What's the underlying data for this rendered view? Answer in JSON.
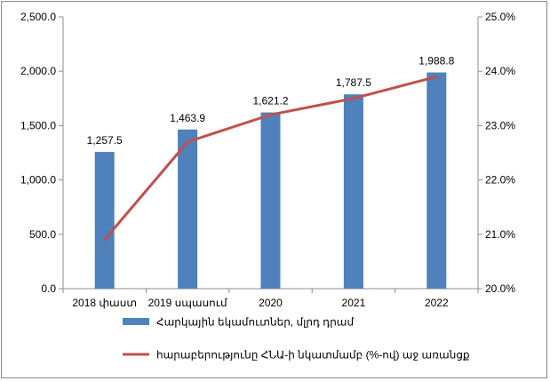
{
  "chart_data": {
    "type": "bar",
    "categories": [
      "2018 փաստ",
      "2019 սպասում",
      "2020",
      "2021",
      "2022"
    ],
    "series": [
      {
        "name": "Հարկային եկամուտներ, մլրդ դրամ",
        "type": "bar",
        "axis": "left",
        "values": [
          1257.5,
          1463.9,
          1621.2,
          1787.5,
          1988.8
        ],
        "labels": [
          "1,257.5",
          "1,463.9",
          "1,621.2",
          "1,787.5",
          "1,988.8"
        ],
        "color": "#4f81bd"
      },
      {
        "name": "հարաբերությունը ՀՆԱ-ի նկատմամբ (%-ով) աջ առանցք",
        "type": "line",
        "axis": "right",
        "values": [
          20.9,
          22.7,
          23.2,
          23.5,
          23.9
        ],
        "color": "#c0504d"
      }
    ],
    "left_axis": {
      "ylim": [
        0,
        2500
      ],
      "ticks": [
        "0.0",
        "500.0",
        "1,000.0",
        "1,500.0",
        "2,000.0",
        "2,500.0"
      ]
    },
    "right_axis": {
      "ylim": [
        20,
        25
      ],
      "ticks": [
        "20.0%",
        "21.0%",
        "22.0%",
        "23.0%",
        "24.0%",
        "25.0%"
      ]
    },
    "grid": false,
    "legend_position": "bottom"
  }
}
